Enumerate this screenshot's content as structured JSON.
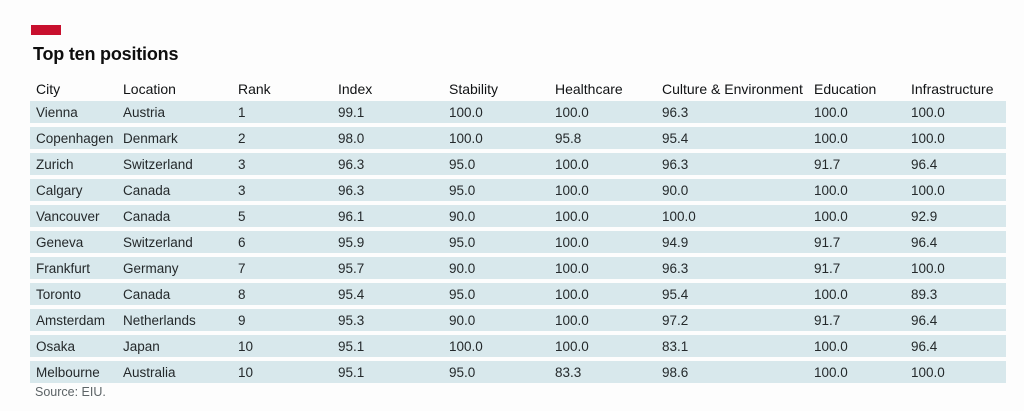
{
  "figure": {
    "title": "Top ten positions",
    "source": "Source: EIU.",
    "accent_color": "#c8102e",
    "row_band_color": "#d8e8ec"
  },
  "chart_data": {
    "type": "table",
    "title": "Top ten positions",
    "columns": [
      "City",
      "Location",
      "Rank",
      "Index",
      "Stability",
      "Healthcare",
      "Culture & Environment",
      "Education",
      "Infrastructure"
    ],
    "rows": [
      [
        "Vienna",
        "Austria",
        "1",
        "99.1",
        "100.0",
        "100.0",
        "96.3",
        "100.0",
        "100.0"
      ],
      [
        "Copenhagen",
        "Denmark",
        "2",
        "98.0",
        "100.0",
        "95.8",
        "95.4",
        "100.0",
        "100.0"
      ],
      [
        "Zurich",
        "Switzerland",
        "3",
        "96.3",
        "95.0",
        "100.0",
        "96.3",
        "91.7",
        "96.4"
      ],
      [
        "Calgary",
        "Canada",
        "3",
        "96.3",
        "95.0",
        "100.0",
        "90.0",
        "100.0",
        "100.0"
      ],
      [
        "Vancouver",
        "Canada",
        "5",
        "96.1",
        "90.0",
        "100.0",
        "100.0",
        "100.0",
        "92.9"
      ],
      [
        "Geneva",
        "Switzerland",
        "6",
        "95.9",
        "95.0",
        "100.0",
        "94.9",
        "91.7",
        "96.4"
      ],
      [
        "Frankfurt",
        "Germany",
        "7",
        "95.7",
        "90.0",
        "100.0",
        "96.3",
        "91.7",
        "100.0"
      ],
      [
        "Toronto",
        "Canada",
        "8",
        "95.4",
        "95.0",
        "100.0",
        "95.4",
        "100.0",
        "89.3"
      ],
      [
        "Amsterdam",
        "Netherlands",
        "9",
        "95.3",
        "90.0",
        "100.0",
        "97.2",
        "91.7",
        "96.4"
      ],
      [
        "Osaka",
        "Japan",
        "10",
        "95.1",
        "100.0",
        "100.0",
        "83.1",
        "100.0",
        "96.4"
      ],
      [
        "Melbourne",
        "Australia",
        "10",
        "95.1",
        "95.0",
        "83.3",
        "98.6",
        "100.0",
        "100.0"
      ]
    ],
    "source": "Source: EIU."
  }
}
